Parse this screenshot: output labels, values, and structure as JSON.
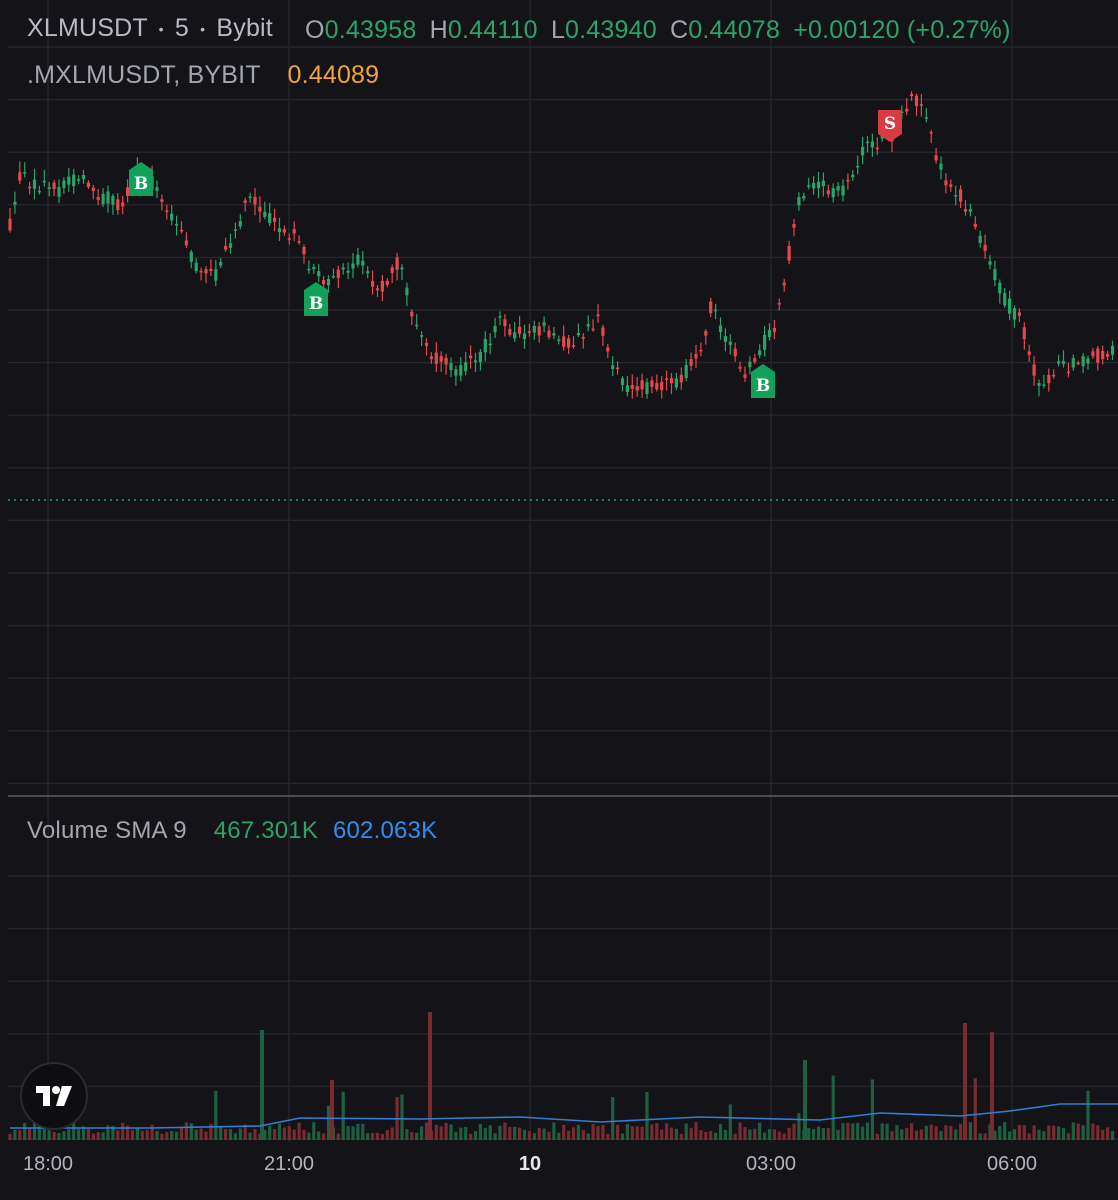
{
  "header": {
    "symbol": "XLMUSDT",
    "dot1": "•",
    "interval": "5",
    "dot2": "•",
    "exchange": "Bybit",
    "o_label": "O",
    "o_value": "0.43958",
    "h_label": "H",
    "h_value": "0.44110",
    "l_label": "L",
    "l_value": "0.43940",
    "c_label": "C",
    "c_value": "0.44078",
    "change": "+0.00120 (+0.27%)"
  },
  "mark_price": {
    "label": ".MXLMUSDT, BYBIT",
    "value": "0.44089"
  },
  "volume_pane": {
    "label": "Volume SMA 9",
    "volume_value": "467.301K",
    "sma_value": "602.063K"
  },
  "time_axis": [
    "18:00",
    "21:00",
    "10",
    "03:00",
    "06:00"
  ],
  "signals": [
    {
      "label": "B",
      "type": "buy"
    },
    {
      "label": "B",
      "type": "buy"
    },
    {
      "label": "B",
      "type": "buy"
    },
    {
      "label": "S",
      "type": "sell"
    }
  ],
  "colors": {
    "background": "#131318",
    "grid": "#26272d",
    "up": "#2aa567",
    "down": "#e5484d",
    "sma": "#2f7fd6",
    "mark_price": "#f2a33a"
  },
  "icons": {
    "logo": "tradingview-logo-icon"
  }
}
